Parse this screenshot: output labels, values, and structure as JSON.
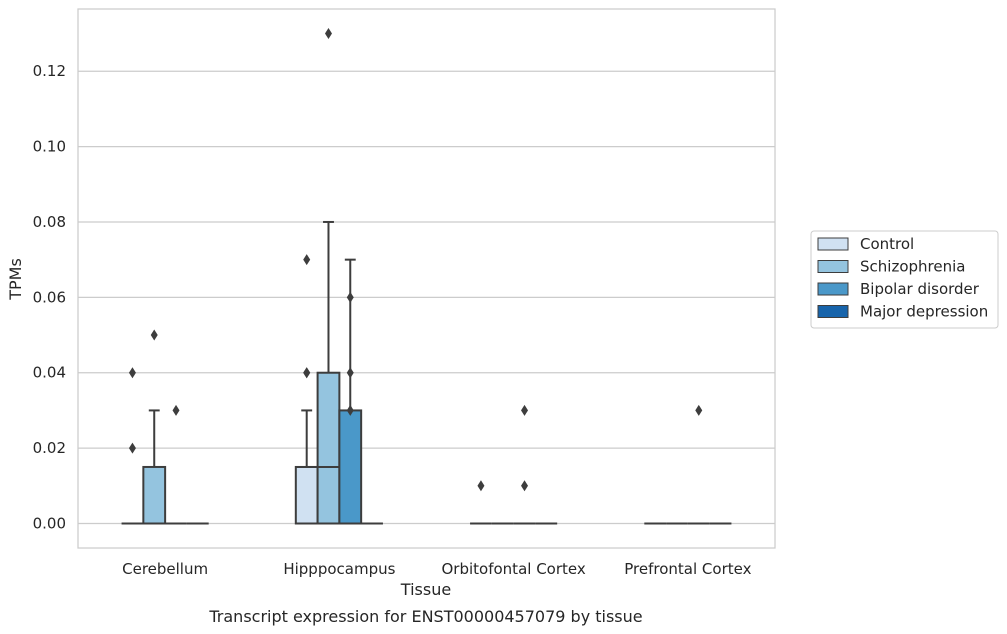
{
  "chart_data": {
    "type": "box",
    "title": "Transcript expression for ENST00000457079 by tissue",
    "xlabel": "Tissue",
    "ylabel": "TPMs",
    "ylim": [
      -0.0065,
      0.1365
    ],
    "yticks": [
      "0.00",
      "0.02",
      "0.04",
      "0.06",
      "0.08",
      "0.10",
      "0.12"
    ],
    "grid": true,
    "legend_position": "center-right",
    "categories": [
      "Cerebellum",
      "Hipppocampus",
      "Orbitofontal Cortex",
      "Prefrontal Cortex"
    ],
    "series": [
      {
        "name": "Control",
        "color": "#d0e1f2",
        "boxes": [
          {
            "q1": 0,
            "median": 0,
            "q3": 0,
            "whisker_low": 0,
            "whisker_high": 0,
            "outliers": [
              0.02,
              0.04
            ]
          },
          {
            "q1": 0,
            "median": 0.015,
            "q3": 0.015,
            "whisker_low": 0,
            "whisker_high": 0.03,
            "outliers": [
              0.04,
              0.04,
              0.07
            ]
          },
          {
            "q1": 0,
            "median": 0,
            "q3": 0,
            "whisker_low": 0,
            "whisker_high": 0,
            "outliers": [
              0.01
            ]
          },
          {
            "q1": 0,
            "median": 0,
            "q3": 0,
            "whisker_low": 0,
            "whisker_high": 0,
            "outliers": []
          }
        ]
      },
      {
        "name": "Schizophrenia",
        "color": "#94c4df",
        "boxes": [
          {
            "q1": 0,
            "median": 0,
            "q3": 0.015,
            "whisker_low": 0,
            "whisker_high": 0.03,
            "outliers": [
              0.05
            ]
          },
          {
            "q1": 0,
            "median": 0.015,
            "q3": 0.04,
            "whisker_low": 0,
            "whisker_high": 0.08,
            "outliers": [
              0.13
            ]
          },
          {
            "q1": 0,
            "median": 0,
            "q3": 0,
            "whisker_low": 0,
            "whisker_high": 0,
            "outliers": []
          },
          {
            "q1": 0,
            "median": 0,
            "q3": 0,
            "whisker_low": 0,
            "whisker_high": 0,
            "outliers": []
          }
        ]
      },
      {
        "name": "Bipolar disorder",
        "color": "#4a98c9",
        "boxes": [
          {
            "q1": 0,
            "median": 0,
            "q3": 0,
            "whisker_low": 0,
            "whisker_high": 0,
            "outliers": [
              0.03
            ]
          },
          {
            "q1": 0,
            "median": 0,
            "q3": 0.03,
            "whisker_low": 0,
            "whisker_high": 0.07,
            "outliers": [
              0.03,
              0.04,
              0.06
            ]
          },
          {
            "q1": 0,
            "median": 0,
            "q3": 0,
            "whisker_low": 0,
            "whisker_high": 0,
            "outliers": [
              0.01,
              0.03
            ]
          },
          {
            "q1": 0,
            "median": 0,
            "q3": 0,
            "whisker_low": 0,
            "whisker_high": 0,
            "outliers": [
              0.03
            ]
          }
        ]
      },
      {
        "name": "Major depression",
        "color": "#1764ab",
        "boxes": [
          {
            "q1": 0,
            "median": 0,
            "q3": 0,
            "whisker_low": 0,
            "whisker_high": 0,
            "outliers": []
          },
          {
            "q1": 0,
            "median": 0,
            "q3": 0,
            "whisker_low": 0,
            "whisker_high": 0,
            "outliers": []
          },
          {
            "q1": 0,
            "median": 0,
            "q3": 0,
            "whisker_low": 0,
            "whisker_high": 0,
            "outliers": []
          },
          {
            "q1": 0,
            "median": 0,
            "q3": 0,
            "whisker_low": 0,
            "whisker_high": 0,
            "outliers": []
          }
        ]
      }
    ]
  }
}
